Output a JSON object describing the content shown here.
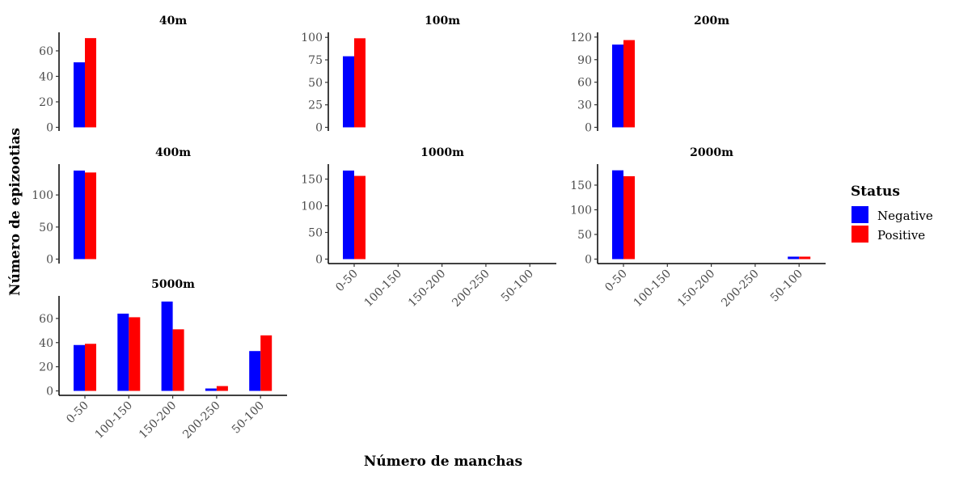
{
  "xlabel": "Número de manchas",
  "ylabel": "Número de epizootias",
  "legend": {
    "title": "Status",
    "placement": "right",
    "entries": [
      {
        "name": "Negative",
        "color": "#0000FF"
      },
      {
        "name": "Positive",
        "color": "#FF0000"
      }
    ]
  },
  "chart_data": [
    {
      "type": "bar",
      "title": "40m",
      "categories": [
        "0-50"
      ],
      "series": [
        {
          "name": "Negative",
          "values": [
            51
          ]
        },
        {
          "name": "Positive",
          "values": [
            70
          ]
        }
      ],
      "ylim": [
        0,
        72
      ],
      "yticks": [
        0,
        20,
        40,
        60
      ]
    },
    {
      "type": "bar",
      "title": "100m",
      "categories": [
        "0-50"
      ],
      "series": [
        {
          "name": "Negative",
          "values": [
            79
          ]
        },
        {
          "name": "Positive",
          "values": [
            99
          ]
        }
      ],
      "ylim": [
        0,
        102
      ],
      "yticks": [
        0,
        25,
        50,
        75,
        100
      ]
    },
    {
      "type": "bar",
      "title": "200m",
      "categories": [
        "0-50"
      ],
      "series": [
        {
          "name": "Negative",
          "values": [
            110
          ]
        },
        {
          "name": "Positive",
          "values": [
            116
          ]
        }
      ],
      "ylim": [
        0,
        122
      ],
      "yticks": [
        0,
        30,
        60,
        90,
        120
      ]
    },
    {
      "type": "bar",
      "title": "400m",
      "categories": [
        "0-50"
      ],
      "series": [
        {
          "name": "Negative",
          "values": [
            138
          ]
        },
        {
          "name": "Positive",
          "values": [
            135
          ]
        }
      ],
      "ylim": [
        0,
        143
      ],
      "yticks": [
        0,
        50,
        100
      ]
    },
    {
      "type": "bar",
      "title": "1000m",
      "categories": [
        "0-50",
        "100-150",
        "150-200",
        "200-250",
        "50-100"
      ],
      "series": [
        {
          "name": "Negative",
          "values": [
            166,
            0,
            0,
            0,
            0
          ]
        },
        {
          "name": "Positive",
          "values": [
            156,
            0,
            0,
            0,
            0
          ]
        }
      ],
      "ylim": [
        0,
        172
      ],
      "yticks": [
        0,
        50,
        100,
        150
      ]
    },
    {
      "type": "bar",
      "title": "2000m",
      "categories": [
        "0-50",
        "100-150",
        "150-200",
        "200-250",
        "50-100"
      ],
      "series": [
        {
          "name": "Negative",
          "values": [
            180,
            0,
            0,
            0,
            5
          ]
        },
        {
          "name": "Positive",
          "values": [
            168,
            0,
            0,
            0,
            5
          ]
        }
      ],
      "ylim": [
        0,
        186
      ],
      "yticks": [
        0,
        50,
        100,
        150
      ]
    },
    {
      "type": "bar",
      "title": "5000m",
      "categories": [
        "0-50",
        "100-150",
        "150-200",
        "200-250",
        "50-100"
      ],
      "series": [
        {
          "name": "Negative",
          "values": [
            38,
            64,
            74,
            2,
            33
          ]
        },
        {
          "name": "Positive",
          "values": [
            39,
            61,
            51,
            4,
            46
          ]
        }
      ],
      "ylim": [
        0,
        76
      ],
      "yticks": [
        0,
        20,
        40,
        60
      ]
    }
  ]
}
